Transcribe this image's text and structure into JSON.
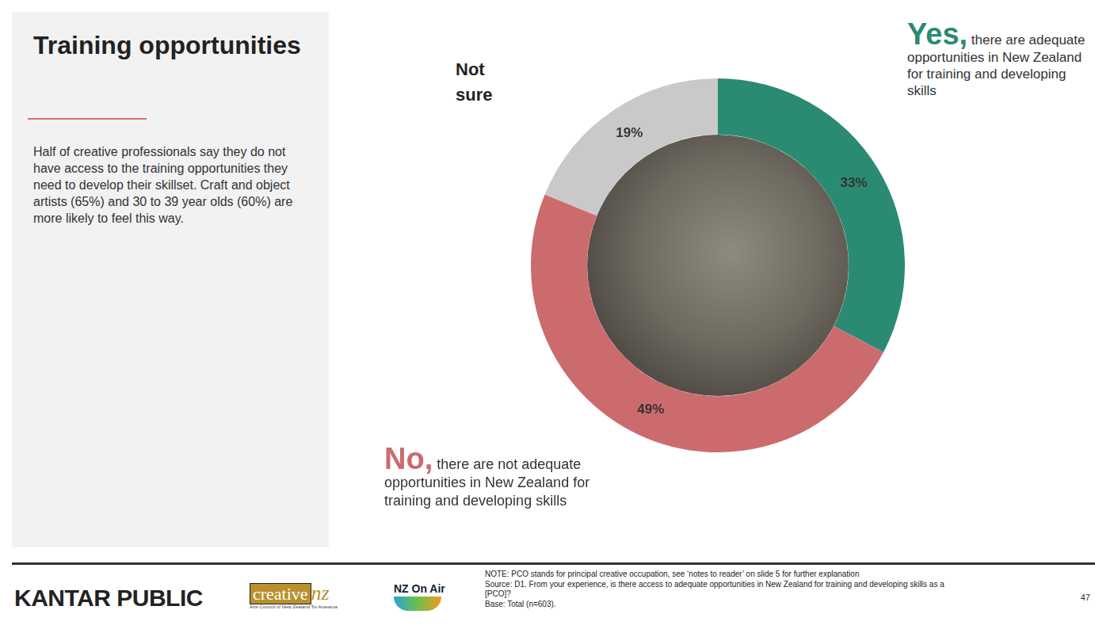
{
  "chart_data": {
    "type": "doughnut",
    "categories": [
      "Yes,",
      "No,",
      "Not sure"
    ],
    "values": [
      33,
      49,
      19
    ],
    "value_labels": [
      "33%",
      "49%",
      "19%"
    ],
    "colors": [
      "#2a8a72",
      "#cc6b6e",
      "#c9c9c9"
    ],
    "data_labels": true,
    "legend": false,
    "annotations": [
      {
        "category": "Yes,",
        "text": "there are adequate opportunities in New Zealand for training and developing skills"
      },
      {
        "category": "No,",
        "text": "there are not adequate opportunities in New Zealand for training and developing skills"
      }
    ]
  },
  "panel": {
    "title": "Training opportunities",
    "text": "Half of creative professionals say they do not have access to the training opportunities they need to develop their skillset. Craft and object artists (65%) and 30 to 39 year olds (60%) are more likely to feel this way."
  },
  "footer": {
    "brand": "KANTAR PUBLIC",
    "logos": [
      {
        "name": "creative",
        "mark": "nz",
        "subtitle": "Arts Council of New Zealand Toi Aotearoa"
      },
      {
        "name": "NZ On Air"
      }
    ],
    "notes": [
      "NOTE: PCO stands for principal creative occupation, see ‘notes to reader’ on slide 5 for further explanation",
      "Source: D1. From your experience, is there access to adequate opportunities in New Zealand for training and developing skills as a [PCO]?",
      "Base: Total (n=603)."
    ],
    "page": "47"
  }
}
